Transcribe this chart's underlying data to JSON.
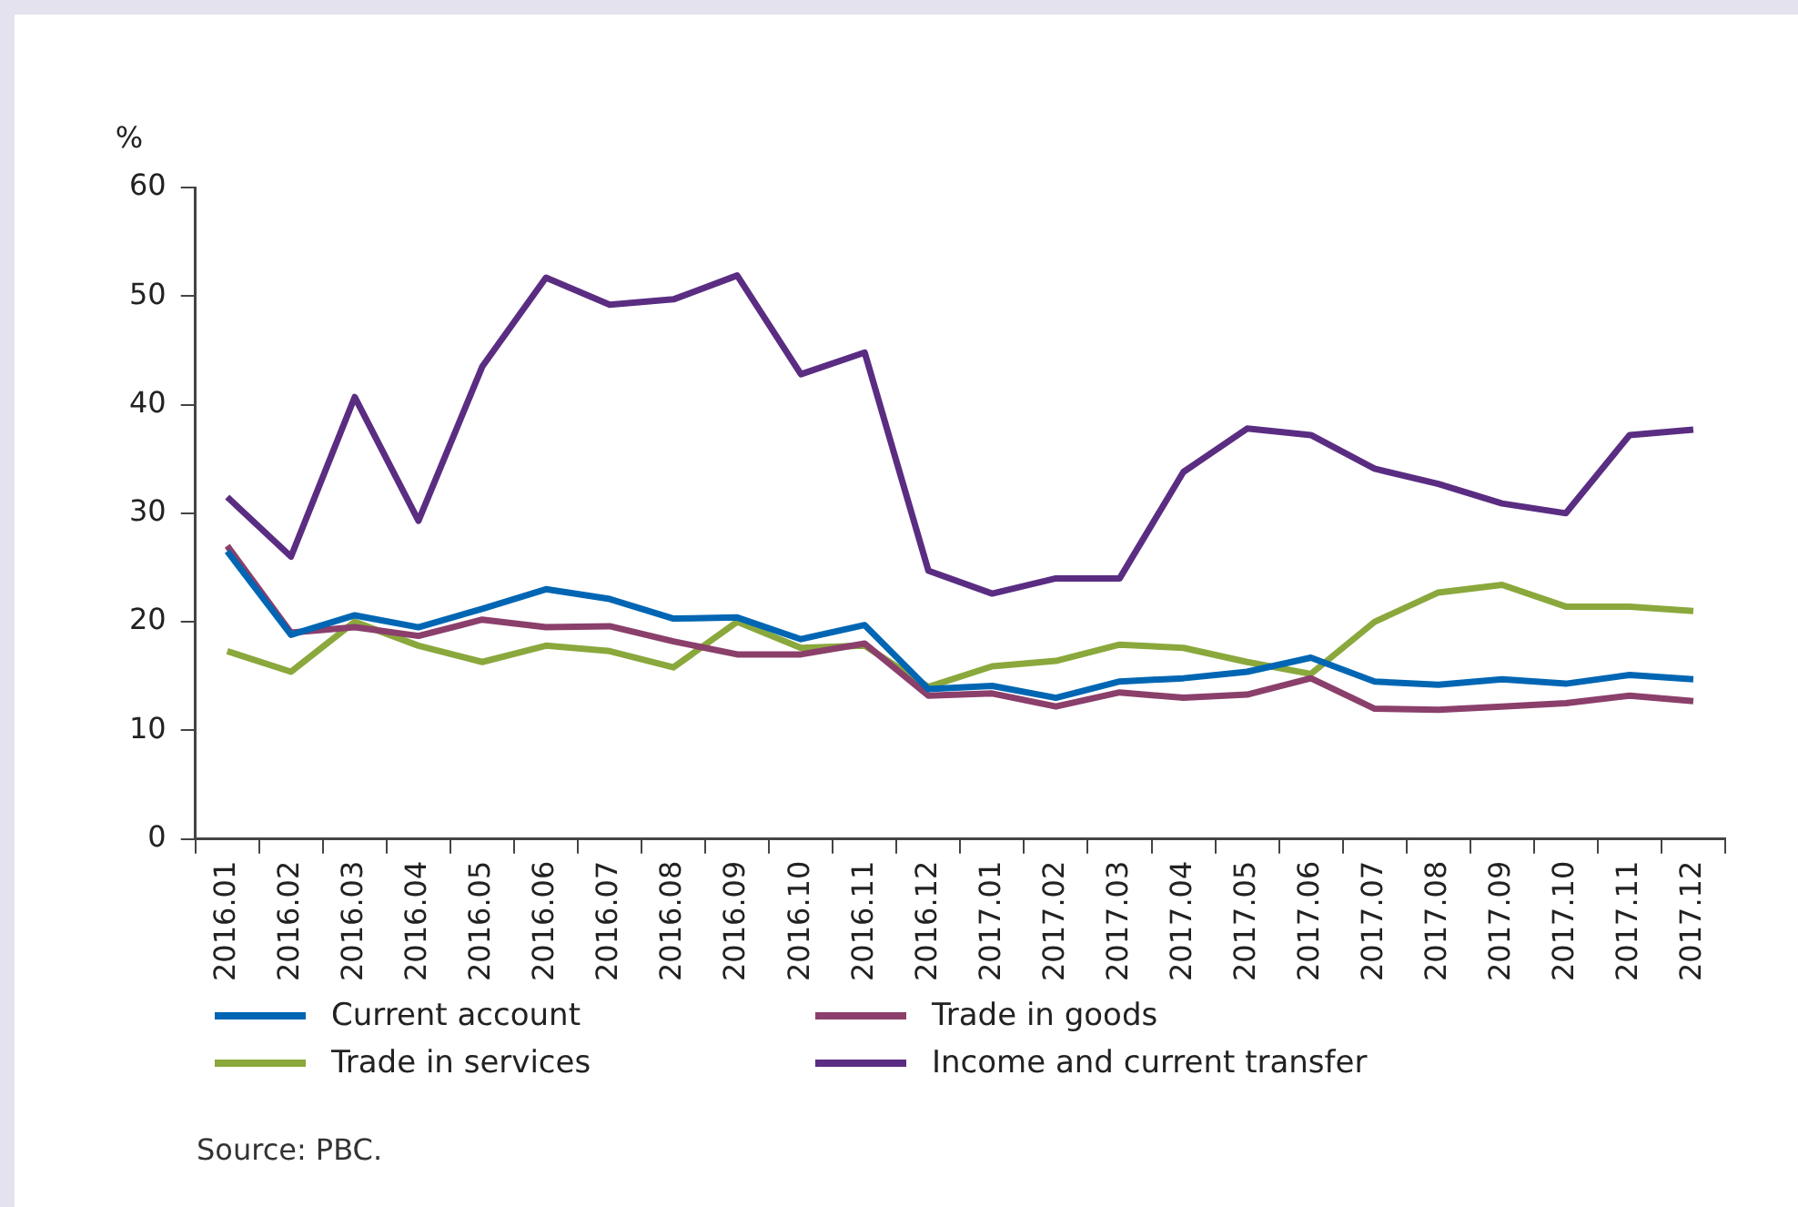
{
  "chart_data": {
    "type": "line",
    "ylabel": "%",
    "categories": [
      "2016.01",
      "2016.02",
      "2016.03",
      "2016.04",
      "2016.05",
      "2016.06",
      "2016.07",
      "2016.08",
      "2016.09",
      "2016.10",
      "2016.11",
      "2016.12",
      "2017.01",
      "2017.02",
      "2017.03",
      "2017.04",
      "2017.05",
      "2017.06",
      "2017.07",
      "2017.08",
      "2017.09",
      "2017.10",
      "2017.11",
      "2017.12"
    ],
    "series": [
      {
        "name": "Current account",
        "color": "#0066b3",
        "values": [
          26.5,
          18.8,
          20.6,
          19.5,
          21.2,
          23,
          22.1,
          20.3,
          20.4,
          18.4,
          19.7,
          13.8,
          14.1,
          13,
          14.5,
          14.8,
          15.4,
          16.7,
          14.5,
          14.2,
          14.7,
          14.3,
          15.1,
          14.7
        ]
      },
      {
        "name": "Trade in goods",
        "color": "#8b3f6b",
        "values": [
          27,
          19,
          19.5,
          18.7,
          20.2,
          19.5,
          19.6,
          18.2,
          17,
          17,
          18,
          13.2,
          13.4,
          12.2,
          13.5,
          13,
          13.3,
          14.8,
          12,
          11.9,
          12.2,
          12.5,
          13.2,
          12.7
        ]
      },
      {
        "name": "Trade in services",
        "color": "#8aa83c",
        "values": [
          17.3,
          15.4,
          20,
          17.8,
          16.3,
          17.8,
          17.3,
          15.8,
          20,
          17.6,
          17.8,
          14,
          15.9,
          16.4,
          17.9,
          17.6,
          16.3,
          15.2,
          20,
          22.7,
          23.4,
          21.4,
          21.4,
          21
        ]
      },
      {
        "name": "Income and current transfer",
        "color": "#5a2d82",
        "values": [
          31.5,
          26,
          40.7,
          29.3,
          43.5,
          51.7,
          49.2,
          49.7,
          51.9,
          42.8,
          44.8,
          24.7,
          22.6,
          24,
          24,
          33.8,
          37.8,
          37.2,
          34.1,
          32.7,
          30.9,
          30,
          37.2,
          37.7
        ]
      }
    ],
    "ylim": [
      0,
      60
    ],
    "yticks": [
      0,
      10,
      20,
      30,
      40,
      50,
      60
    ],
    "grid": false,
    "legend": "bottom",
    "marker": "none",
    "line_style": "solid",
    "annotations": [
      "Source: PBC."
    ]
  }
}
